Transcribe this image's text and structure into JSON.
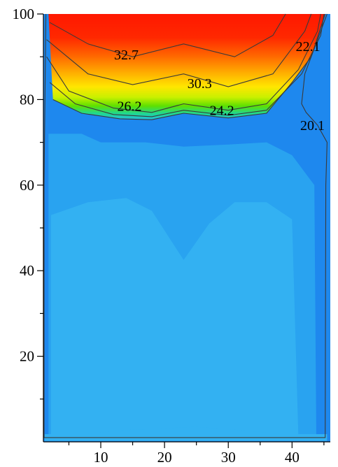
{
  "chart_data": {
    "type": "heatmap",
    "title": "",
    "xlabel": "",
    "ylabel": "",
    "xlim": [
      1,
      46
    ],
    "ylim": [
      0,
      100
    ],
    "x_ticks": [
      10,
      20,
      30,
      40
    ],
    "y_ticks": [
      20,
      40,
      60,
      80,
      100
    ],
    "colors": {
      "background_field": "#1e88ee",
      "inner_field": "#29a3f0",
      "core_field": "#33b1f2",
      "hot_core": "#ff1800"
    },
    "contour_levels": [
      {
        "value": "32.7",
        "points": [
          [
            2,
            98
          ],
          [
            8,
            93
          ],
          [
            15,
            90
          ],
          [
            23,
            93
          ],
          [
            31,
            90
          ],
          [
            37,
            95
          ],
          [
            39,
            100
          ]
        ]
      },
      {
        "value": "30.3",
        "points": [
          [
            1.5,
            94
          ],
          [
            8,
            86
          ],
          [
            15,
            83.5
          ],
          [
            23,
            86
          ],
          [
            30,
            83
          ],
          [
            37,
            86
          ],
          [
            42,
            96
          ],
          [
            43,
            100
          ]
        ]
      },
      {
        "value": "26.2",
        "points": [
          [
            1.5,
            90
          ],
          [
            5,
            82
          ],
          [
            12,
            78
          ],
          [
            18,
            77
          ],
          [
            23,
            79
          ],
          [
            30,
            77.5
          ],
          [
            36,
            79
          ],
          [
            41,
            87
          ],
          [
            44,
            96
          ],
          [
            44.5,
            100
          ]
        ]
      },
      {
        "value": "24.2",
        "points": [
          [
            2,
            84
          ],
          [
            6,
            79
          ],
          [
            12,
            76.5
          ],
          [
            18,
            76
          ],
          [
            23,
            77.5
          ],
          [
            30,
            76.3
          ],
          [
            36,
            77.5
          ],
          [
            41.5,
            86
          ],
          [
            44.5,
            95
          ],
          [
            45,
            100
          ]
        ]
      },
      {
        "value": "22.1",
        "points": [
          [
            2.5,
            80
          ],
          [
            7,
            76.8
          ],
          [
            13,
            75.5
          ],
          [
            18,
            75.3
          ],
          [
            23,
            76.8
          ],
          [
            30,
            75.7
          ],
          [
            36,
            76.8
          ],
          [
            40,
            84
          ],
          [
            43,
            90
          ],
          [
            45.2,
            100
          ]
        ]
      },
      {
        "value": "20.1",
        "points": [
          [
            1.4,
            100
          ],
          [
            1.1,
            60
          ],
          [
            1.1,
            1
          ],
          [
            45.2,
            1
          ],
          [
            45.3,
            60
          ],
          [
            45.5,
            70
          ],
          [
            44,
            74
          ],
          [
            42.2,
            77
          ],
          [
            41.5,
            79
          ],
          [
            42,
            86
          ],
          [
            43,
            90
          ],
          [
            45.5,
            100
          ]
        ]
      }
    ],
    "contour_label_positions": [
      {
        "value": "32.7",
        "x": 14,
        "y": 90.5
      },
      {
        "value": "30.3",
        "x": 25.5,
        "y": 83.8
      },
      {
        "value": "26.2",
        "x": 14.5,
        "y": 78.5
      },
      {
        "value": "24.2",
        "x": 29,
        "y": 77.5
      },
      {
        "value": "22.1",
        "x": 42.5,
        "y": 92.5
      },
      {
        "value": "20.1",
        "x": 43.2,
        "y": 74
      }
    ]
  }
}
